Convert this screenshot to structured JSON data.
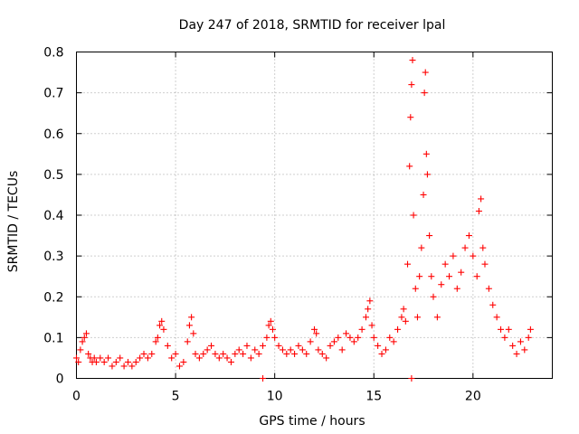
{
  "chart_data": {
    "type": "scatter",
    "title": "Day 247 of 2018, SRMTID for receiver lpal",
    "xlabel": "GPS time / hours",
    "ylabel": "SRMTID / TECUs",
    "xlim": [
      0,
      24
    ],
    "ylim": [
      0,
      0.8
    ],
    "xticks": [
      0,
      5,
      10,
      15,
      20
    ],
    "xtick_labels": [
      "0",
      "5",
      "10",
      "15",
      "20"
    ],
    "yticks": [
      0,
      0.1,
      0.2,
      0.3,
      0.4,
      0.5,
      0.6,
      0.7,
      0.8
    ],
    "ytick_labels": [
      "0",
      "0.1",
      "0.2",
      "0.3",
      "0.4",
      "0.5",
      "0.6",
      "0.7",
      "0.8"
    ],
    "grid": true,
    "marker": "+",
    "color": "#ff0000",
    "series": [
      {
        "name": "SRMTID",
        "points": [
          [
            0.0,
            0.05
          ],
          [
            0.1,
            0.04
          ],
          [
            0.2,
            0.07
          ],
          [
            0.3,
            0.09
          ],
          [
            0.4,
            0.1
          ],
          [
            0.5,
            0.11
          ],
          [
            0.6,
            0.06
          ],
          [
            0.7,
            0.05
          ],
          [
            0.8,
            0.04
          ],
          [
            0.9,
            0.05
          ],
          [
            1.0,
            0.04
          ],
          [
            1.2,
            0.05
          ],
          [
            1.4,
            0.04
          ],
          [
            1.6,
            0.05
          ],
          [
            1.8,
            0.03
          ],
          [
            2.0,
            0.04
          ],
          [
            2.2,
            0.05
          ],
          [
            2.4,
            0.03
          ],
          [
            2.6,
            0.04
          ],
          [
            2.8,
            0.03
          ],
          [
            3.0,
            0.04
          ],
          [
            3.2,
            0.05
          ],
          [
            3.4,
            0.06
          ],
          [
            3.6,
            0.05
          ],
          [
            3.8,
            0.06
          ],
          [
            4.0,
            0.09
          ],
          [
            4.1,
            0.1
          ],
          [
            4.2,
            0.13
          ],
          [
            4.3,
            0.14
          ],
          [
            4.4,
            0.12
          ],
          [
            4.6,
            0.08
          ],
          [
            4.8,
            0.05
          ],
          [
            5.0,
            0.06
          ],
          [
            5.2,
            0.03
          ],
          [
            5.4,
            0.04
          ],
          [
            5.6,
            0.09
          ],
          [
            5.7,
            0.13
          ],
          [
            5.8,
            0.15
          ],
          [
            5.9,
            0.11
          ],
          [
            6.0,
            0.06
          ],
          [
            6.2,
            0.05
          ],
          [
            6.4,
            0.06
          ],
          [
            6.6,
            0.07
          ],
          [
            6.8,
            0.08
          ],
          [
            7.0,
            0.06
          ],
          [
            7.2,
            0.05
          ],
          [
            7.4,
            0.06
          ],
          [
            7.6,
            0.05
          ],
          [
            7.8,
            0.04
          ],
          [
            8.0,
            0.06
          ],
          [
            8.2,
            0.07
          ],
          [
            8.4,
            0.06
          ],
          [
            8.6,
            0.08
          ],
          [
            8.8,
            0.05
          ],
          [
            9.0,
            0.07
          ],
          [
            9.2,
            0.06
          ],
          [
            9.4,
            0.08
          ],
          [
            9.6,
            0.1
          ],
          [
            9.7,
            0.13
          ],
          [
            9.8,
            0.14
          ],
          [
            9.9,
            0.12
          ],
          [
            10.0,
            0.1
          ],
          [
            10.2,
            0.08
          ],
          [
            10.4,
            0.07
          ],
          [
            10.6,
            0.06
          ],
          [
            10.8,
            0.07
          ],
          [
            11.0,
            0.06
          ],
          [
            11.2,
            0.08
          ],
          [
            11.4,
            0.07
          ],
          [
            11.6,
            0.06
          ],
          [
            11.8,
            0.09
          ],
          [
            12.0,
            0.12
          ],
          [
            12.1,
            0.11
          ],
          [
            12.2,
            0.07
          ],
          [
            12.4,
            0.06
          ],
          [
            12.6,
            0.05
          ],
          [
            12.8,
            0.08
          ],
          [
            13.0,
            0.09
          ],
          [
            13.2,
            0.1
          ],
          [
            13.4,
            0.07
          ],
          [
            13.6,
            0.11
          ],
          [
            13.8,
            0.1
          ],
          [
            14.0,
            0.09
          ],
          [
            14.2,
            0.1
          ],
          [
            14.4,
            0.12
          ],
          [
            14.6,
            0.15
          ],
          [
            14.7,
            0.17
          ],
          [
            14.8,
            0.19
          ],
          [
            14.9,
            0.13
          ],
          [
            15.0,
            0.1
          ],
          [
            15.2,
            0.08
          ],
          [
            15.4,
            0.06
          ],
          [
            15.6,
            0.07
          ],
          [
            15.8,
            0.1
          ],
          [
            16.0,
            0.09
          ],
          [
            16.2,
            0.12
          ],
          [
            16.4,
            0.15
          ],
          [
            16.5,
            0.17
          ],
          [
            16.6,
            0.14
          ],
          [
            16.7,
            0.28
          ],
          [
            16.8,
            0.52
          ],
          [
            16.85,
            0.64
          ],
          [
            16.9,
            0.72
          ],
          [
            16.95,
            0.78
          ],
          [
            17.0,
            0.4
          ],
          [
            17.1,
            0.22
          ],
          [
            17.2,
            0.15
          ],
          [
            17.3,
            0.25
          ],
          [
            17.4,
            0.32
          ],
          [
            17.5,
            0.45
          ],
          [
            17.55,
            0.7
          ],
          [
            17.6,
            0.75
          ],
          [
            17.65,
            0.55
          ],
          [
            17.7,
            0.5
          ],
          [
            17.8,
            0.35
          ],
          [
            17.9,
            0.25
          ],
          [
            18.0,
            0.2
          ],
          [
            18.2,
            0.15
          ],
          [
            18.4,
            0.23
          ],
          [
            18.6,
            0.28
          ],
          [
            18.8,
            0.25
          ],
          [
            19.0,
            0.3
          ],
          [
            19.2,
            0.22
          ],
          [
            19.4,
            0.26
          ],
          [
            19.6,
            0.32
          ],
          [
            19.8,
            0.35
          ],
          [
            20.0,
            0.3
          ],
          [
            20.2,
            0.25
          ],
          [
            20.3,
            0.41
          ],
          [
            20.4,
            0.44
          ],
          [
            20.5,
            0.32
          ],
          [
            20.6,
            0.28
          ],
          [
            20.8,
            0.22
          ],
          [
            21.0,
            0.18
          ],
          [
            21.2,
            0.15
          ],
          [
            21.4,
            0.12
          ],
          [
            21.6,
            0.1
          ],
          [
            21.8,
            0.12
          ],
          [
            22.0,
            0.08
          ],
          [
            22.2,
            0.06
          ],
          [
            22.4,
            0.09
          ],
          [
            22.6,
            0.07
          ],
          [
            22.8,
            0.1
          ],
          [
            22.9,
            0.12
          ]
        ],
        "baseline_points": [
          [
            9.4,
            0.0
          ],
          [
            16.9,
            0.0
          ]
        ]
      }
    ]
  }
}
